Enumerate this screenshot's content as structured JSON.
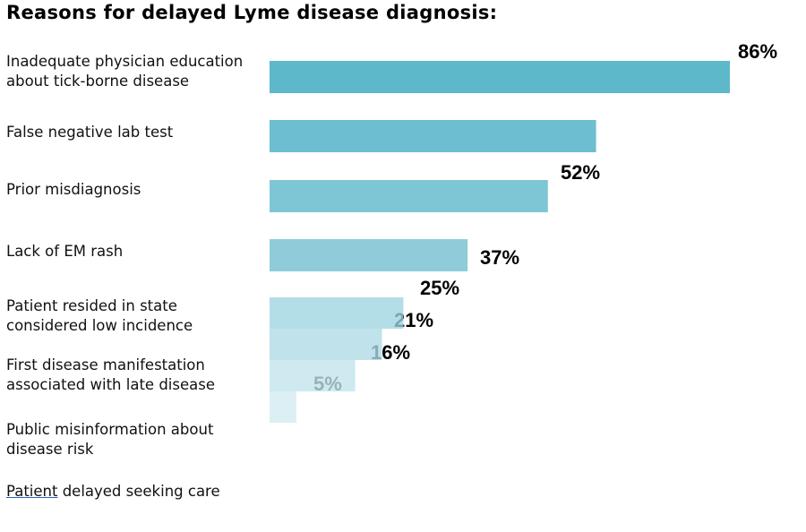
{
  "chart_data": {
    "type": "bar",
    "orientation": "horizontal",
    "title": "Reasons for delayed Lyme disease diagnosis:",
    "xlabel": "",
    "ylabel": "",
    "xlim": [
      0,
      86
    ],
    "grid": false,
    "legend": "none",
    "categories": [
      "Inadequate physician education\nabout tick-borne disease",
      "False negative lab test",
      "Prior misdiagnosis",
      "Lack of EM rash",
      "Patient resided in state\nconsidered low incidence",
      "First disease manifestation\nassociated with late disease",
      "Public misinformation about\ndisease risk",
      "Patient delayed seeking care"
    ],
    "values": [
      86,
      61,
      52,
      37,
      25,
      21,
      16,
      5
    ],
    "value_labels": [
      "86%",
      "52%",
      "37%",
      "25%",
      "21%",
      "16%",
      "5%"
    ],
    "bar_colors": [
      "#5DB8CA",
      "#6DBED0",
      "#7EC6D6",
      "#8ECCDA",
      "#9DD3E0",
      "#AEDBE6",
      "#C0E3EC",
      "#D2EBF1"
    ],
    "annotations": [
      {
        "text": "86%",
        "near_bar": 0
      },
      {
        "text": "52%",
        "near_bar": 2
      },
      {
        "text": "37%",
        "near_bar": 3
      },
      {
        "text": "25%",
        "near_bar": 4
      },
      {
        "text": "21%",
        "near_bar": 5
      },
      {
        "text": "16%",
        "near_bar": 6
      },
      {
        "text": "5%",
        "near_bar": 7
      }
    ]
  },
  "labels": {
    "title": "Reasons for delayed Lyme disease diagnosis:",
    "cat0": "Inadequate physician education\nabout tick-borne disease",
    "cat1": "False negative lab test",
    "cat2": "Prior misdiagnosis",
    "cat3": "Lack of EM rash",
    "cat4": "Patient resided in state\nconsidered low incidence",
    "cat5": "First disease manifestation\nassociated with late disease",
    "cat6": "Public misinformation about\ndisease risk",
    "cat7_first_word": "Patient",
    "cat7_rest": " delayed seeking care"
  }
}
